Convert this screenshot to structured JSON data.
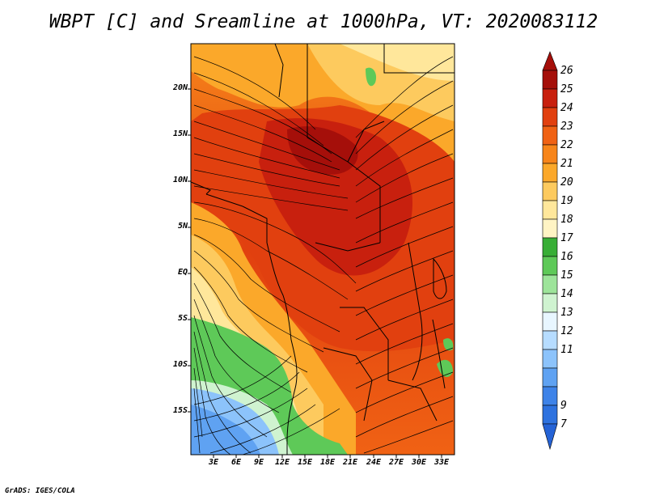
{
  "title": "WBPT [C] and Sreamline at 1000hPa, VT: 2020083112",
  "credit": "GrADS: IGES/COLA",
  "map": {
    "lat_labels": [
      "20N",
      "15N",
      "10N",
      "5N",
      "EQ",
      "5S",
      "10S",
      "15S"
    ],
    "lon_labels": [
      "3E",
      "6E",
      "9E",
      "12E",
      "15E",
      "18E",
      "21E",
      "24E",
      "27E",
      "30E",
      "33E"
    ]
  },
  "colorbar": {
    "labels": [
      "26",
      "25",
      "24",
      "23",
      "22",
      "21",
      "20",
      "19",
      "18",
      "17",
      "16",
      "15",
      "14",
      "13",
      "12",
      "11",
      "9",
      "7"
    ],
    "colors": [
      "#a50f0a",
      "#c8200e",
      "#e1400f",
      "#f06214",
      "#f7851a",
      "#fba82a",
      "#fdca5e",
      "#ffe79b",
      "#38ae36",
      "#5ec958",
      "#9de49a",
      "#cff3d0",
      "#e8f6ff",
      "#b6dcff",
      "#8cc3fb",
      "#5fa2f2",
      "#3e83e8",
      "#2563d6"
    ]
  }
}
